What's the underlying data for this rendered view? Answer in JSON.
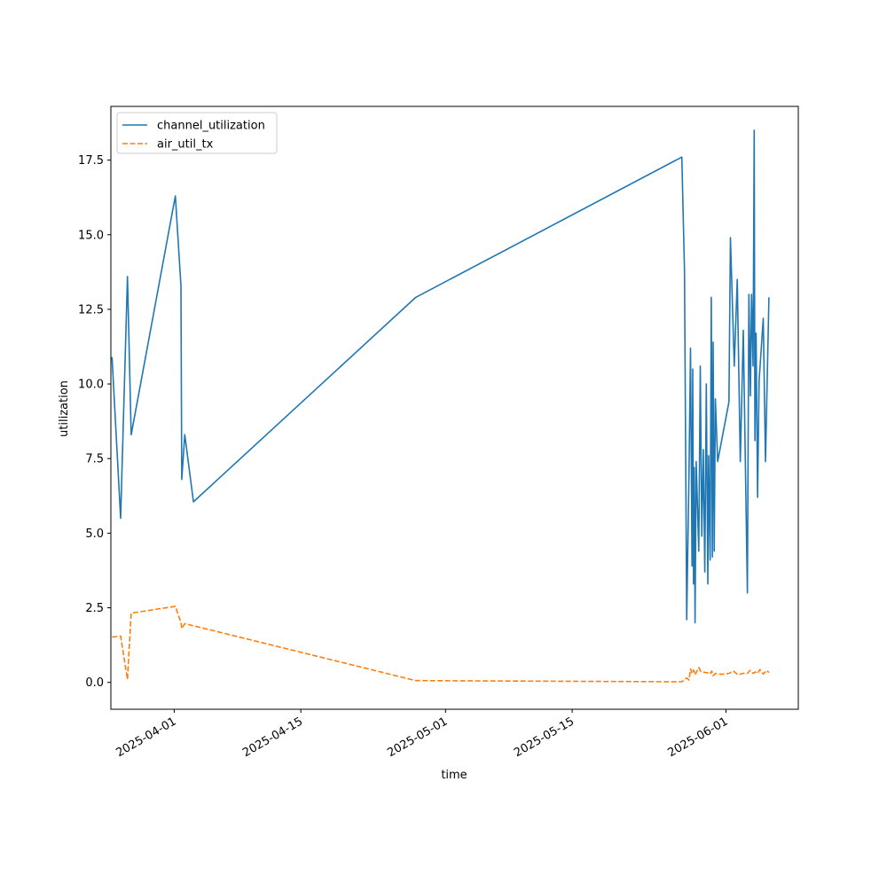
{
  "chart_data": {
    "type": "line",
    "xlabel": "time",
    "ylabel": "utilization",
    "x_axis_type": "date",
    "xlim": [
      "2025-03-25",
      "2025-06-09"
    ],
    "ylim": [
      -0.9,
      19.3
    ],
    "x_ticks": [
      "2025-04-01",
      "2025-04-15",
      "2025-05-01",
      "2025-05-15",
      "2025-06-01"
    ],
    "y_ticks": [
      0.0,
      2.5,
      5.0,
      7.5,
      10.0,
      12.5,
      15.0,
      17.5
    ],
    "y_tick_labels": [
      "0.0",
      "2.5",
      "5.0",
      "7.5",
      "10.0",
      "12.5",
      "15.0",
      "17.5"
    ],
    "grid": false,
    "legend_position": "upper-left",
    "series": [
      {
        "name": "channel_utilization",
        "color": "#1f77b4",
        "line_style": "solid",
        "points": [
          [
            "2025-03-25T03:00",
            10.9
          ],
          [
            "2025-03-26T02:00",
            5.5
          ],
          [
            "2025-03-26T20:00",
            13.6
          ],
          [
            "2025-03-27T06:00",
            8.3
          ],
          [
            "2025-04-01T03:00",
            16.3
          ],
          [
            "2025-04-01T18:00",
            13.3
          ],
          [
            "2025-04-01T20:00",
            6.8
          ],
          [
            "2025-04-02T04:00",
            8.3
          ],
          [
            "2025-04-03T03:00",
            6.05
          ],
          [
            "2025-04-27T17:00",
            12.9
          ],
          [
            "2025-05-27T03:00",
            17.6
          ],
          [
            "2025-05-27T10:00",
            13.8
          ],
          [
            "2025-05-27T16:00",
            2.1
          ],
          [
            "2025-05-27T22:00",
            7.1
          ],
          [
            "2025-05-28T02:00",
            11.2
          ],
          [
            "2025-05-28T06:00",
            3.9
          ],
          [
            "2025-05-28T08:00",
            10.5
          ],
          [
            "2025-05-28T10:00",
            3.3
          ],
          [
            "2025-05-28T12:00",
            7.2
          ],
          [
            "2025-05-28T14:00",
            2.0
          ],
          [
            "2025-05-28T17:00",
            7.4
          ],
          [
            "2025-05-29T00:00",
            4.4
          ],
          [
            "2025-05-29T04:00",
            10.6
          ],
          [
            "2025-05-29T08:00",
            4.9
          ],
          [
            "2025-05-29T12:00",
            7.8
          ],
          [
            "2025-05-29T16:00",
            3.7
          ],
          [
            "2025-05-29T20:00",
            10.0
          ],
          [
            "2025-05-30T00:00",
            3.3
          ],
          [
            "2025-05-30T02:00",
            7.6
          ],
          [
            "2025-05-30T06:00",
            4.1
          ],
          [
            "2025-05-30T09:00",
            12.9
          ],
          [
            "2025-05-30T12:00",
            4.2
          ],
          [
            "2025-05-30T14:00",
            11.4
          ],
          [
            "2025-05-30T17:00",
            4.4
          ],
          [
            "2025-05-30T20:00",
            9.5
          ],
          [
            "2025-05-31T02:00",
            7.4
          ],
          [
            "2025-06-01T08:00",
            9.4
          ],
          [
            "2025-06-01T12:00",
            14.9
          ],
          [
            "2025-06-01T22:00",
            10.6
          ],
          [
            "2025-06-02T06:00",
            13.5
          ],
          [
            "2025-06-02T14:00",
            7.4
          ],
          [
            "2025-06-02T22:00",
            11.8
          ],
          [
            "2025-06-03T09:00",
            3.0
          ],
          [
            "2025-06-03T13:00",
            13.0
          ],
          [
            "2025-06-03T17:00",
            9.6
          ],
          [
            "2025-06-03T20:00",
            13.0
          ],
          [
            "2025-06-04T00:00",
            10.6
          ],
          [
            "2025-06-04T03:00",
            18.5
          ],
          [
            "2025-06-04T05:00",
            8.1
          ],
          [
            "2025-06-04T08:00",
            11.7
          ],
          [
            "2025-06-04T12:00",
            6.2
          ],
          [
            "2025-06-04T16:00",
            10.1
          ],
          [
            "2025-06-05T03:00",
            12.2
          ],
          [
            "2025-06-05T09:00",
            7.4
          ],
          [
            "2025-06-05T18:00",
            12.9
          ]
        ]
      },
      {
        "name": "air_util_tx",
        "color": "#ff7f0e",
        "line_style": "dashed",
        "points": [
          [
            "2025-03-25T03:00",
            1.52
          ],
          [
            "2025-03-26T02:00",
            1.55
          ],
          [
            "2025-03-26T20:00",
            0.1
          ],
          [
            "2025-03-27T06:00",
            2.32
          ],
          [
            "2025-04-01T03:00",
            2.55
          ],
          [
            "2025-04-01T18:00",
            2.0
          ],
          [
            "2025-04-01T20:00",
            1.8
          ],
          [
            "2025-04-02T04:00",
            1.97
          ],
          [
            "2025-04-27T17:00",
            0.06
          ],
          [
            "2025-05-27T03:00",
            0.02
          ],
          [
            "2025-05-27T16:00",
            0.15
          ],
          [
            "2025-05-27T22:00",
            0.08
          ],
          [
            "2025-05-28T02:00",
            0.45
          ],
          [
            "2025-05-28T06:00",
            0.3
          ],
          [
            "2025-05-28T10:00",
            0.42
          ],
          [
            "2025-05-28T14:00",
            0.25
          ],
          [
            "2025-05-29T00:00",
            0.5
          ],
          [
            "2025-05-29T06:00",
            0.35
          ],
          [
            "2025-05-30T00:00",
            0.32
          ],
          [
            "2025-05-30T06:00",
            0.28
          ],
          [
            "2025-05-30T10:00",
            0.38
          ],
          [
            "2025-05-30T14:00",
            0.22
          ],
          [
            "2025-05-30T20:00",
            0.3
          ],
          [
            "2025-05-31T12:00",
            0.27
          ],
          [
            "2025-06-01T08:00",
            0.3
          ],
          [
            "2025-06-01T20:00",
            0.38
          ],
          [
            "2025-06-02T08:00",
            0.25
          ],
          [
            "2025-06-02T20:00",
            0.3
          ],
          [
            "2025-06-03T09:00",
            0.3
          ],
          [
            "2025-06-03T16:00",
            0.4
          ],
          [
            "2025-06-04T00:00",
            0.3
          ],
          [
            "2025-06-04T06:00",
            0.35
          ],
          [
            "2025-06-04T12:00",
            0.3
          ],
          [
            "2025-06-04T18:00",
            0.43
          ],
          [
            "2025-06-05T03:00",
            0.28
          ],
          [
            "2025-06-05T12:00",
            0.4
          ],
          [
            "2025-06-05T18:00",
            0.33
          ]
        ]
      }
    ]
  }
}
